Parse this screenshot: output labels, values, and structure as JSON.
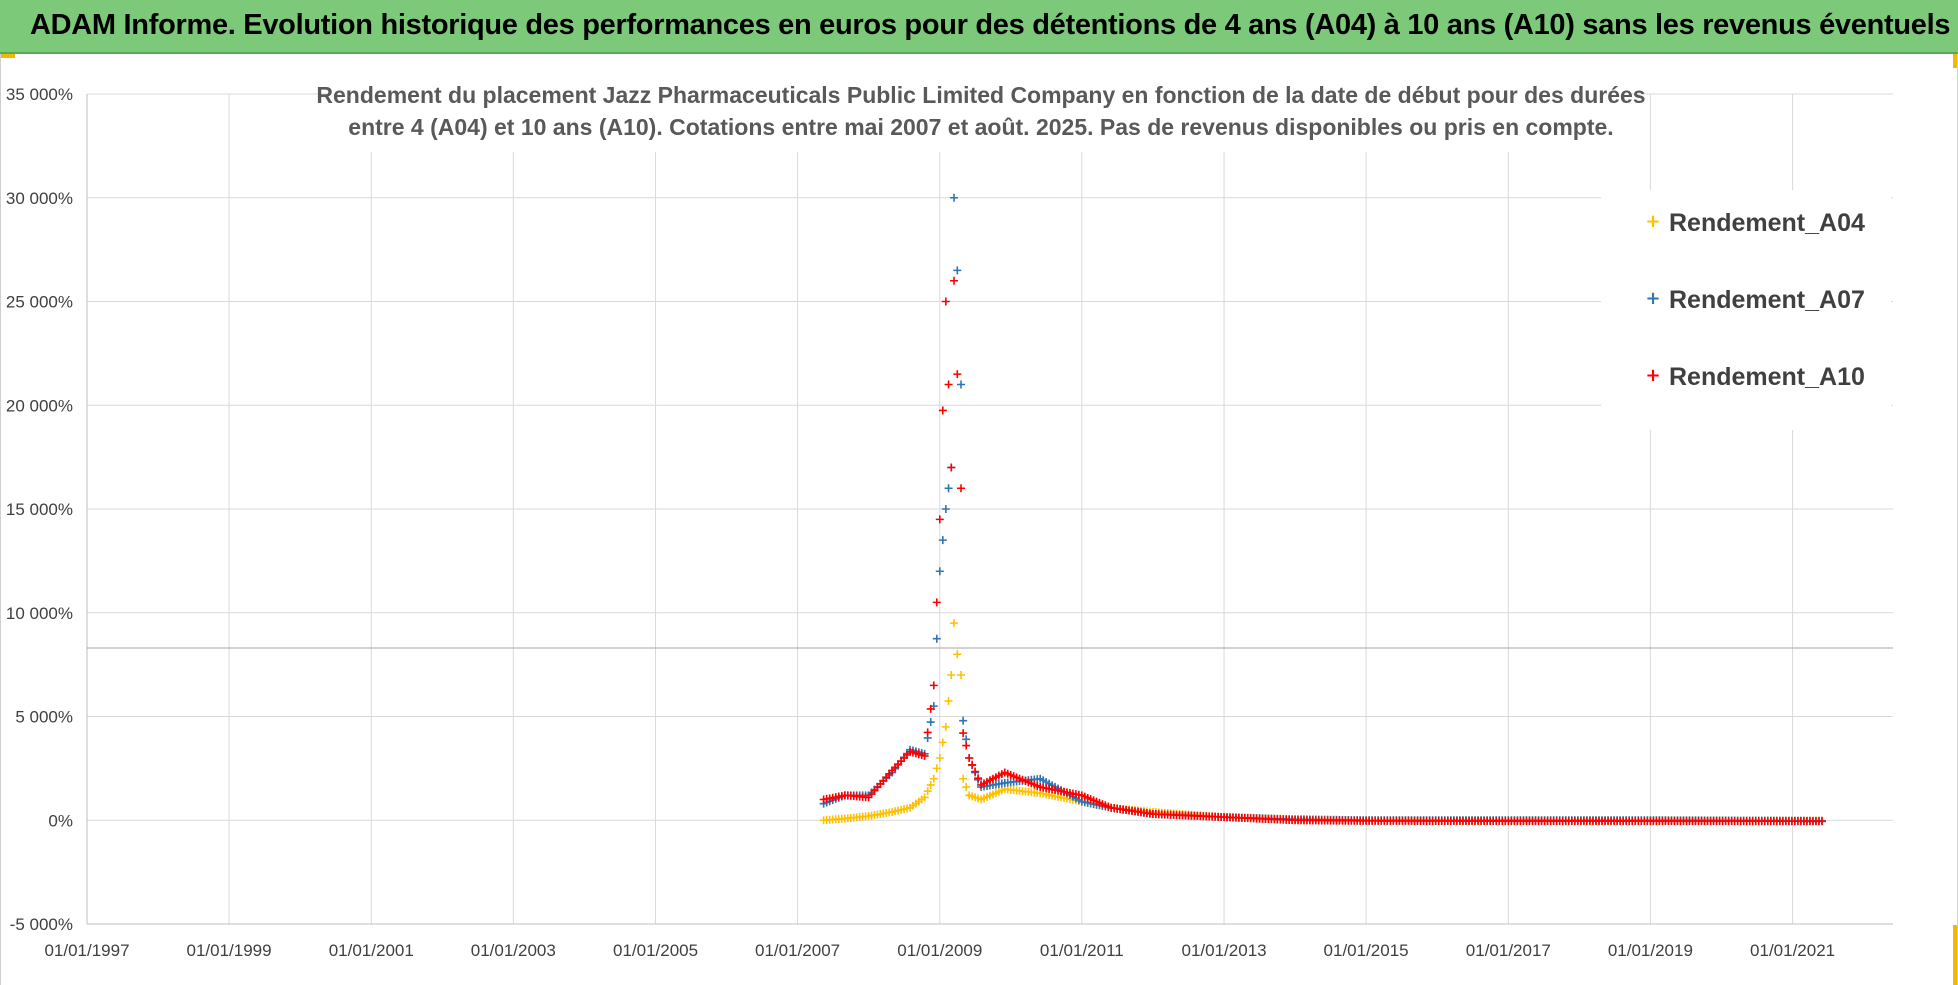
{
  "header": {
    "title": "ADAM Informe. Evolution historique des performances en euros pour des détentions de 4 ans (A04) à 10 ans (A10) sans les revenus éventuels"
  },
  "colors": {
    "banner": "#7dc97a",
    "accent_corner": "#f2b800",
    "A04": "#ffc000",
    "A07": "#2e75b6",
    "A10": "#ff0000",
    "grid": "#d9d9d9"
  },
  "chart_data": {
    "type": "scatter",
    "title_lines": [
      "Rendement du placement Jazz Pharmaceuticals Public Limited Company en fonction de la date de début pour des durées",
      "entre 4 (A04) et 10 ans (A10). Cotations entre mai 2007 et août. 2025. Pas de revenus disponibles ou pris en compte."
    ],
    "x_axis": {
      "type": "date",
      "range": [
        "1997-01-01",
        "2022-06-01"
      ],
      "tick_labels": [
        "01/01/1997",
        "01/01/1999",
        "01/01/2001",
        "01/01/2003",
        "01/01/2005",
        "01/01/2007",
        "01/01/2009",
        "01/01/2011",
        "01/01/2013",
        "01/01/2015",
        "01/01/2017",
        "01/01/2019",
        "01/01/2021"
      ]
    },
    "y_axis": {
      "unit": "%",
      "range": [
        -5000,
        35000
      ],
      "ticks": [
        -5000,
        0,
        5000,
        10000,
        15000,
        20000,
        25000,
        30000,
        35000
      ],
      "tick_labels": [
        "-5 000%",
        "0%",
        "5 000%",
        "10 000%",
        "15 000%",
        "20 000%",
        "25 000%",
        "30 000%",
        "35 000%"
      ]
    },
    "grid": true,
    "marker": "+",
    "legend": {
      "position": "right",
      "entries": [
        "Rendement_A04",
        "Rendement_A07",
        "Rendement_A10"
      ]
    },
    "series": [
      {
        "name": "Rendement_A04",
        "color": "#ffc000",
        "points": [
          [
            "2007-05-15",
            0
          ],
          [
            "2007-09-01",
            80
          ],
          [
            "2008-01-01",
            200
          ],
          [
            "2008-05-01",
            400
          ],
          [
            "2008-08-01",
            600
          ],
          [
            "2008-10-15",
            1100
          ],
          [
            "2008-12-01",
            2000
          ],
          [
            "2009-01-01",
            3000
          ],
          [
            "2009-02-01",
            4500
          ],
          [
            "2009-03-01",
            7000
          ],
          [
            "2009-03-15",
            9500
          ],
          [
            "2009-04-01",
            8000
          ],
          [
            "2009-04-20",
            7000
          ],
          [
            "2009-05-01",
            2000
          ],
          [
            "2009-06-01",
            1200
          ],
          [
            "2009-08-01",
            1000
          ],
          [
            "2009-12-01",
            1500
          ],
          [
            "2010-06-01",
            1300
          ],
          [
            "2011-01-01",
            900
          ],
          [
            "2011-06-01",
            600
          ],
          [
            "2012-01-01",
            400
          ],
          [
            "2013-01-01",
            150
          ],
          [
            "2014-01-01",
            50
          ],
          [
            "2015-01-01",
            0
          ],
          [
            "2017-01-01",
            0
          ],
          [
            "2019-01-01",
            0
          ],
          [
            "2021-06-01",
            -20
          ]
        ]
      },
      {
        "name": "Rendement_A07",
        "color": "#2e75b6",
        "points": [
          [
            "2007-05-15",
            800
          ],
          [
            "2007-09-01",
            1200
          ],
          [
            "2008-01-01",
            1200
          ],
          [
            "2008-05-01",
            2300
          ],
          [
            "2008-08-01",
            3400
          ],
          [
            "2008-10-15",
            3200
          ],
          [
            "2008-12-01",
            5500
          ],
          [
            "2009-01-01",
            12000
          ],
          [
            "2009-02-01",
            15000
          ],
          [
            "2009-03-01",
            17000
          ],
          [
            "2009-03-15",
            30000
          ],
          [
            "2009-04-01",
            26500
          ],
          [
            "2009-04-20",
            21000
          ],
          [
            "2009-05-01",
            4800
          ],
          [
            "2009-06-01",
            3000
          ],
          [
            "2009-08-01",
            1600
          ],
          [
            "2009-12-01",
            1800
          ],
          [
            "2010-06-01",
            2000
          ],
          [
            "2011-01-01",
            900
          ],
          [
            "2011-06-01",
            600
          ],
          [
            "2012-01-01",
            300
          ],
          [
            "2013-01-01",
            150
          ],
          [
            "2014-01-01",
            40
          ],
          [
            "2015-01-01",
            0
          ],
          [
            "2017-01-01",
            0
          ],
          [
            "2019-01-01",
            0
          ],
          [
            "2021-06-01",
            -30
          ]
        ]
      },
      {
        "name": "Rendement_A10",
        "color": "#ff0000",
        "points": [
          [
            "2007-05-15",
            1000
          ],
          [
            "2007-09-01",
            1200
          ],
          [
            "2008-01-01",
            1100
          ],
          [
            "2008-05-01",
            2400
          ],
          [
            "2008-08-01",
            3300
          ],
          [
            "2008-10-15",
            3100
          ],
          [
            "2008-12-01",
            6500
          ],
          [
            "2009-01-01",
            14500
          ],
          [
            "2009-02-01",
            25000
          ],
          [
            "2009-03-01",
            17000
          ],
          [
            "2009-03-15",
            26000
          ],
          [
            "2009-04-01",
            21500
          ],
          [
            "2009-04-20",
            16000
          ],
          [
            "2009-05-01",
            4200
          ],
          [
            "2009-06-01",
            3000
          ],
          [
            "2009-08-01",
            1700
          ],
          [
            "2009-12-01",
            2300
          ],
          [
            "2010-06-01",
            1600
          ],
          [
            "2011-01-01",
            1200
          ],
          [
            "2011-06-01",
            600
          ],
          [
            "2012-01-01",
            300
          ],
          [
            "2013-01-01",
            150
          ],
          [
            "2014-01-01",
            0
          ],
          [
            "2015-01-01",
            -30
          ],
          [
            "2017-01-01",
            -40
          ],
          [
            "2019-01-01",
            -40
          ],
          [
            "2021-06-01",
            -50
          ]
        ]
      }
    ]
  }
}
